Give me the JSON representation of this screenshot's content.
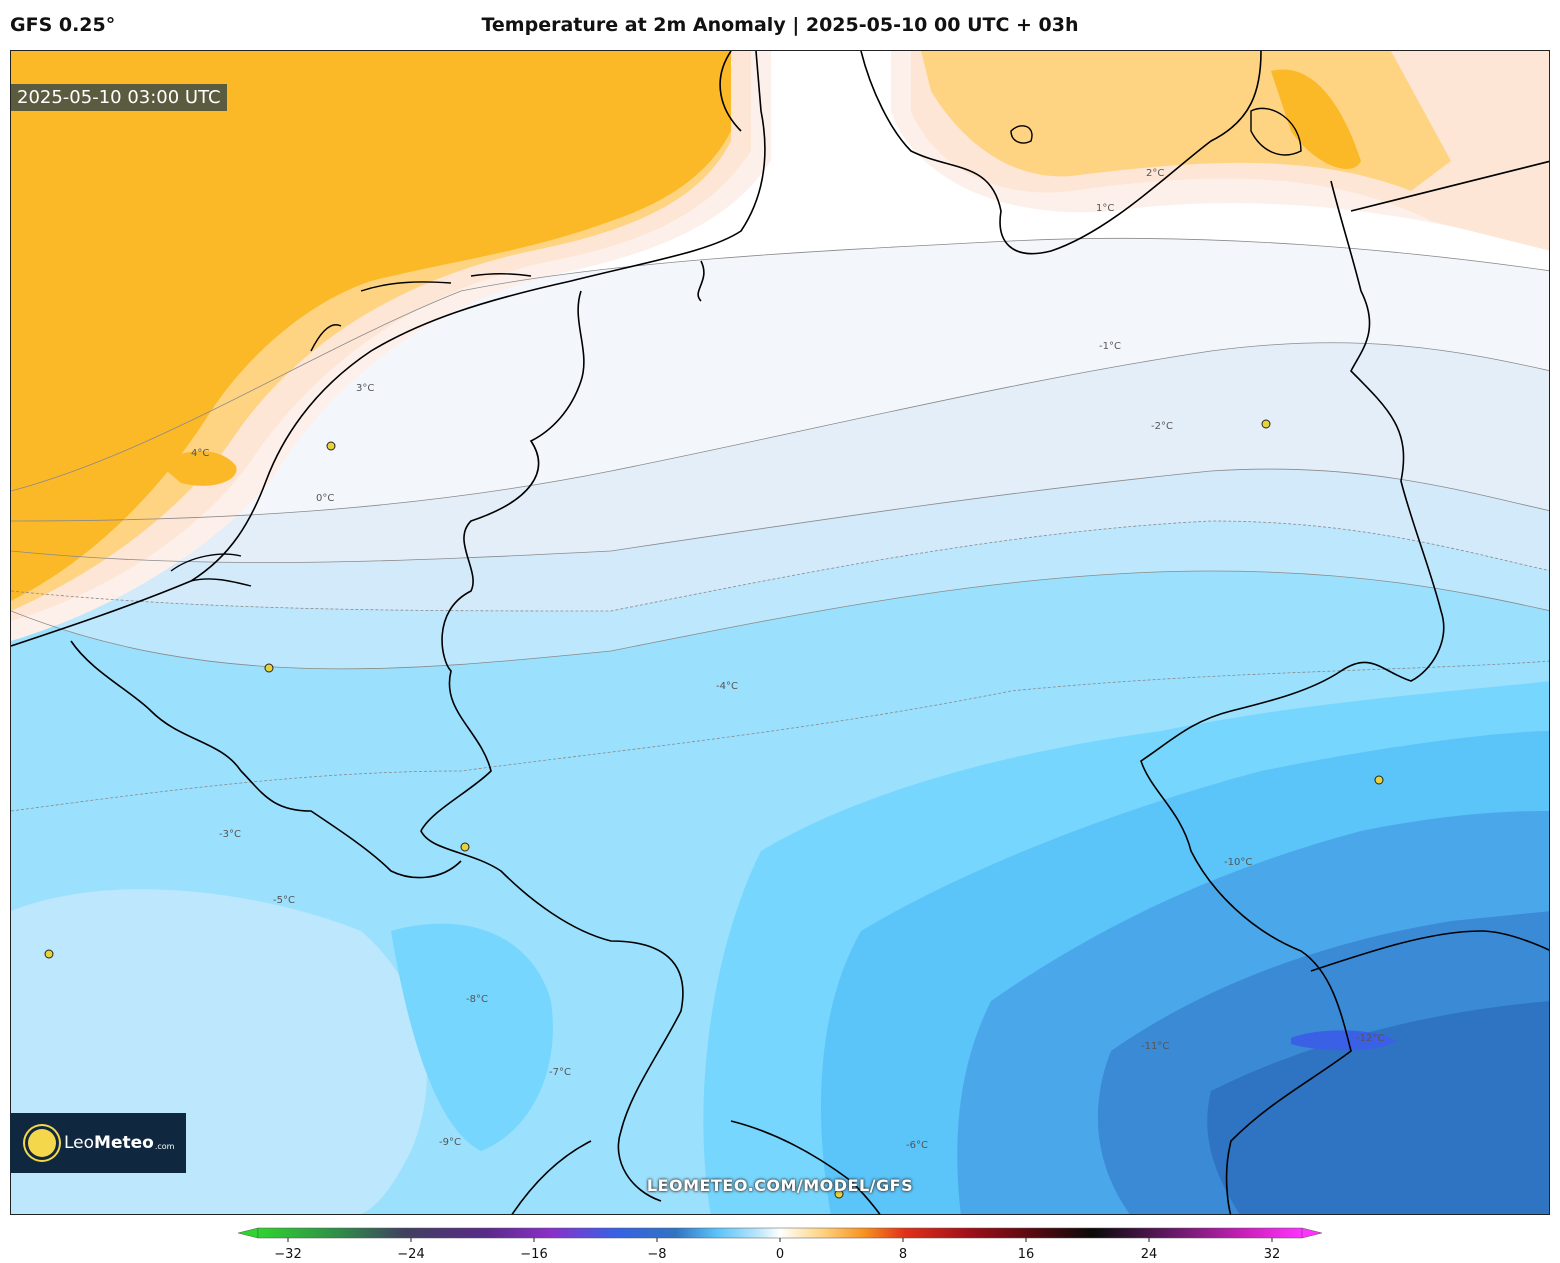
{
  "header": {
    "model": "GFS 0.25°",
    "title": "Temperature at 2m Anomaly | 2025-05-10 00 UTC + 03h"
  },
  "map": {
    "valid_time": "2025-05-10 03:00 UTC",
    "watermark": "LEOMETEO.COM/MODEL/GFS",
    "contour_labels": [
      "4°C",
      "3°C",
      "2°C",
      "1°C",
      "0°C",
      "-1°C",
      "-2°C",
      "-3°C",
      "-4°C",
      "-5°C",
      "-6°C",
      "-7°C",
      "-8°C",
      "-9°C",
      "-10°C",
      "-11°C",
      "-12°C"
    ],
    "colors": {
      "warm4": "#fbb928",
      "warm3": "#fed483",
      "warm2": "#fde6d6",
      "warm1": "#fdf0ea",
      "neutral": "#ffffff",
      "cool1": "#f3f7fc",
      "cool2": "#e4eef9",
      "cool3": "#d3eafb",
      "cool4": "#bde7fc",
      "cool5": "#9be0fd",
      "cool6": "#77d6fd",
      "cool7": "#5bc4f9",
      "cool8": "#4aa8ea",
      "cool9": "#3a8ad6",
      "cool10": "#2f74c2",
      "cool11": "#3a60e6"
    }
  },
  "logo": {
    "brand_light": "Leo",
    "brand_bold": "Meteo",
    "suffix": ".com",
    "icon": "sun-icon"
  },
  "colorbar": {
    "ticks": [
      "−32",
      "−24",
      "−16",
      "−8",
      "0",
      "8",
      "16",
      "24",
      "32"
    ],
    "range": [
      -32,
      32
    ]
  }
}
